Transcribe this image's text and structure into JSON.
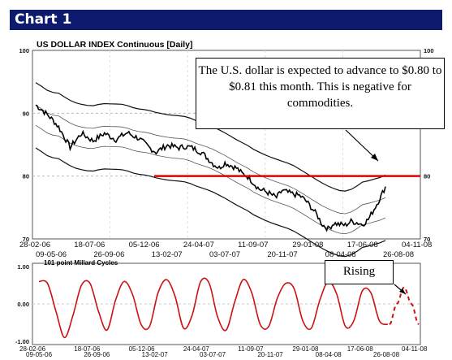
{
  "header": {
    "title": "Chart 1"
  },
  "chart_data": [
    {
      "type": "line",
      "title": "US DOLLAR INDEX Continuous  [Daily]",
      "ylim": [
        70,
        100
      ],
      "yticks_left": [
        "100",
        "90",
        "80",
        "70"
      ],
      "yticks_right": [
        "100",
        "90",
        "80",
        "70"
      ],
      "x_labels_row1": [
        "28-02-06",
        "18-07-06",
        "05-12-06",
        "24-04-07",
        "11-09-07",
        "29-01-08",
        "17-06-08",
        "04-11-08"
      ],
      "x_labels_row2": [
        "09-05-06",
        "26-09-06",
        "13-02-07",
        "03-07-07",
        "20-11-07",
        "08-04-08",
        "26-08-08"
      ],
      "grid": "dashed",
      "reference_line": {
        "value": 80,
        "color": "#e00000"
      },
      "series": [
        {
          "values": [
            91.3,
            90.6,
            89.8,
            88.9,
            87.8,
            86.2,
            84.6,
            85.7,
            86.8,
            86.2,
            85.6,
            86.2,
            86.8,
            86.3,
            85.8,
            86.4,
            86.9,
            86.4,
            86,
            85.2,
            84.4,
            83.8,
            84.4,
            84.9,
            84.7,
            84.5,
            84.7,
            84.6,
            84.2,
            83.7,
            82.8,
            81.9,
            81.3,
            82.1,
            81.7,
            81.3,
            80.4,
            79.9,
            78.9,
            77.9,
            77.6,
            77.1,
            76.6,
            77.7,
            77.4,
            77.1,
            76.9,
            76.2,
            75.1,
            73.9,
            72.3,
            71.6,
            72.5,
            72.3,
            72.2,
            72.8,
            72.6,
            72.3,
            73.1,
            74.7,
            76.4,
            78.3
          ]
        }
      ],
      "bands": "upper/lower envelope lines"
    },
    {
      "type": "line",
      "title": "101 point Millard Cycles",
      "ylim": [
        -1,
        1
      ],
      "yticks": [
        "1.00",
        "0.00",
        "-1.00"
      ],
      "x_labels_row1": [
        "28-02-06",
        "18-07-06",
        "05-12-06",
        "24-04-07",
        "11-09-07",
        "29-01-08",
        "17-06-08",
        "04-11-08"
      ],
      "x_labels_row2": [
        "09-05-06",
        "26-09-06",
        "13-02-07",
        "03-07-07",
        "20-11-07",
        "08-04-08",
        "26-08-08"
      ],
      "series": [
        {
          "values": [
            0.6,
            0.55,
            -0.2,
            -0.9,
            -0.3,
            0.5,
            0.55,
            -0.2,
            -0.7,
            0.1,
            0.6,
            0.25,
            -0.55,
            -0.6,
            0.3,
            0.65,
            0.2,
            -0.65,
            -0.3,
            0.6,
            0.55,
            -0.35,
            -0.7,
            0.05,
            0.65,
            0.3,
            -0.55,
            -0.6,
            0.15,
            0.55,
            0.4,
            -0.45,
            -0.65,
            0.1,
            0.6,
            0.25,
            -0.6,
            -0.45,
            0.35,
            0.3,
            -0.45,
            -0.55
          ],
          "color": "#cc1111"
        },
        {
          "values": [
            -0.55,
            0.0,
            0.45,
            0.0,
            -0.55
          ],
          "color": "#cc1111",
          "style": "dashed"
        }
      ]
    }
  ],
  "annotations": {
    "main_text": "The U.S. dollar is expected to advance to $0.80 to $0.81 this month. This is negative for commodities.",
    "rising_label": "Rising"
  }
}
